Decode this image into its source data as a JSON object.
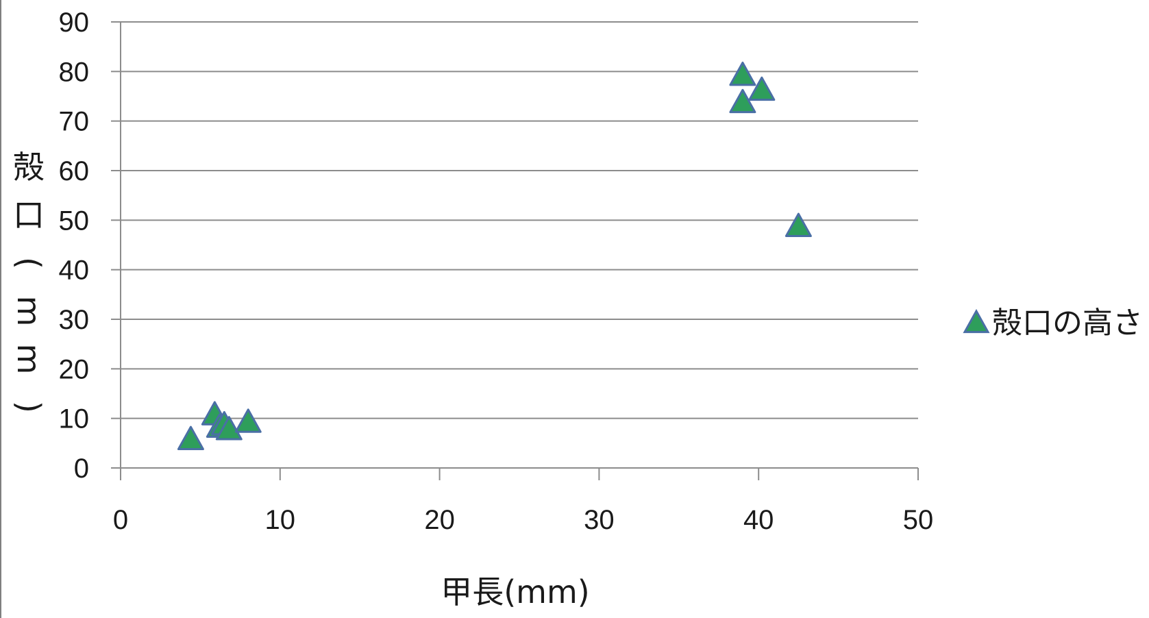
{
  "chart_data": {
    "type": "scatter",
    "title": "",
    "xlabel": "甲長(mm)",
    "ylabel": "殻口(mm)",
    "xlim": [
      0,
      50
    ],
    "ylim": [
      0,
      90
    ],
    "xticks": [
      "0",
      "10",
      "20",
      "30",
      "40",
      "50"
    ],
    "yticks": [
      "0",
      "10",
      "20",
      "30",
      "40",
      "50",
      "60",
      "70",
      "80",
      "90"
    ],
    "grid": "horizontal",
    "legend_position": "right",
    "series": [
      {
        "name": "殻口の高さ",
        "marker": "triangle",
        "color": "#2e9e5b",
        "edge_color": "#4a6fa5",
        "points": [
          {
            "x": 4.4,
            "y": 5.5
          },
          {
            "x": 5.9,
            "y": 10.5
          },
          {
            "x": 6.2,
            "y": 8.0
          },
          {
            "x": 6.5,
            "y": 8.5
          },
          {
            "x": 6.8,
            "y": 7.5
          },
          {
            "x": 8.0,
            "y": 9.0
          },
          {
            "x": 39.0,
            "y": 79.0
          },
          {
            "x": 39.0,
            "y": 73.5
          },
          {
            "x": 40.2,
            "y": 76.0
          },
          {
            "x": 42.5,
            "y": 48.5
          }
        ]
      }
    ]
  }
}
